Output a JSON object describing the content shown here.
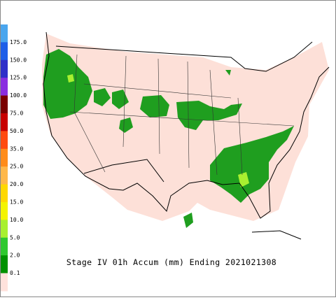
{
  "legend": {
    "labels": [
      "175.0",
      "150.0",
      "125.0",
      "100.0",
      "75.0",
      "50.0",
      "35.0",
      "25.0",
      "20.0",
      "15.0",
      "10.0",
      "5.0",
      "2.0",
      "0.1"
    ],
    "colors": [
      "#4aa6ee",
      "#1f5fe8",
      "#2f2fc8",
      "#8a2ee0",
      "#7a0000",
      "#c80000",
      "#ff4a10",
      "#ff8c1a",
      "#ffb84a",
      "#ffd800",
      "#f4f400",
      "#a8f030",
      "#2fc82f",
      "#009100",
      "#ffe2dc"
    ]
  },
  "title": "Stage IV 01h Accum (mm) Ending 2021021308"
}
